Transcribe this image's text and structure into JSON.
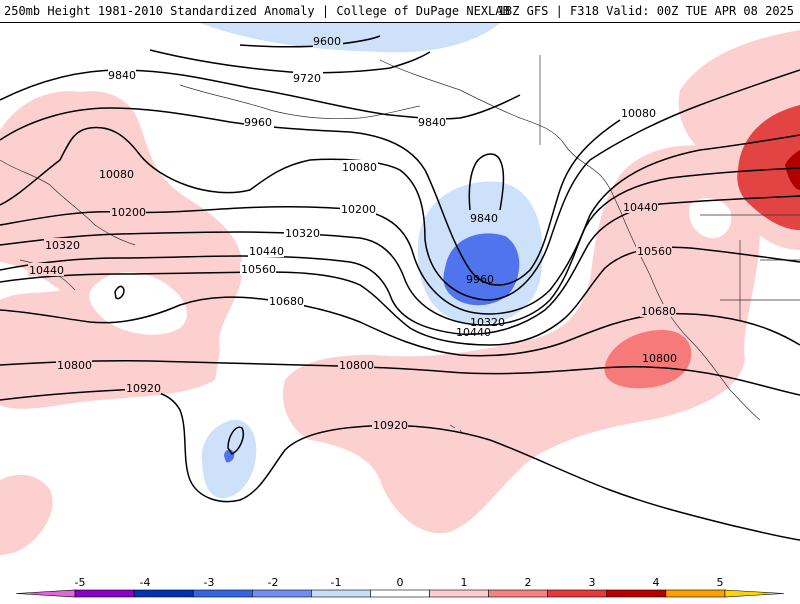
{
  "header": {
    "title": "250mb Height 1981-2010 Standardized Anomaly | College of DuPage NEXLAB",
    "run_info": "18Z GFS | F318 Valid: 00Z TUE APR 08 2025"
  },
  "contour_labels": [
    "9600",
    "9720",
    "9840",
    "9960",
    "10080",
    "10200",
    "10320",
    "10440",
    "10560",
    "10680",
    "10800",
    "10920"
  ],
  "colorbar": {
    "ticks": [
      "-5",
      "-4",
      "-3",
      "-2",
      "-1",
      "0",
      "1",
      "2",
      "3",
      "4",
      "5"
    ],
    "colors": [
      "#e066e0",
      "#8a00c8",
      "#0033b3",
      "#3366e0",
      "#6f8ff5",
      "#c8dcf8",
      "#ffffff",
      "#ffcccc",
      "#f88080",
      "#e83838",
      "#b80000",
      "#ffa000",
      "#ffd200"
    ]
  },
  "anomaly_colors": {
    "pos_light": "#fdd0d0",
    "pos_medium": "#f77a7a",
    "pos_strong": "#e24343",
    "pos_extreme": "#b00000",
    "neg_light": "#cde1fa",
    "neg_medium": "#4f74ee"
  }
}
